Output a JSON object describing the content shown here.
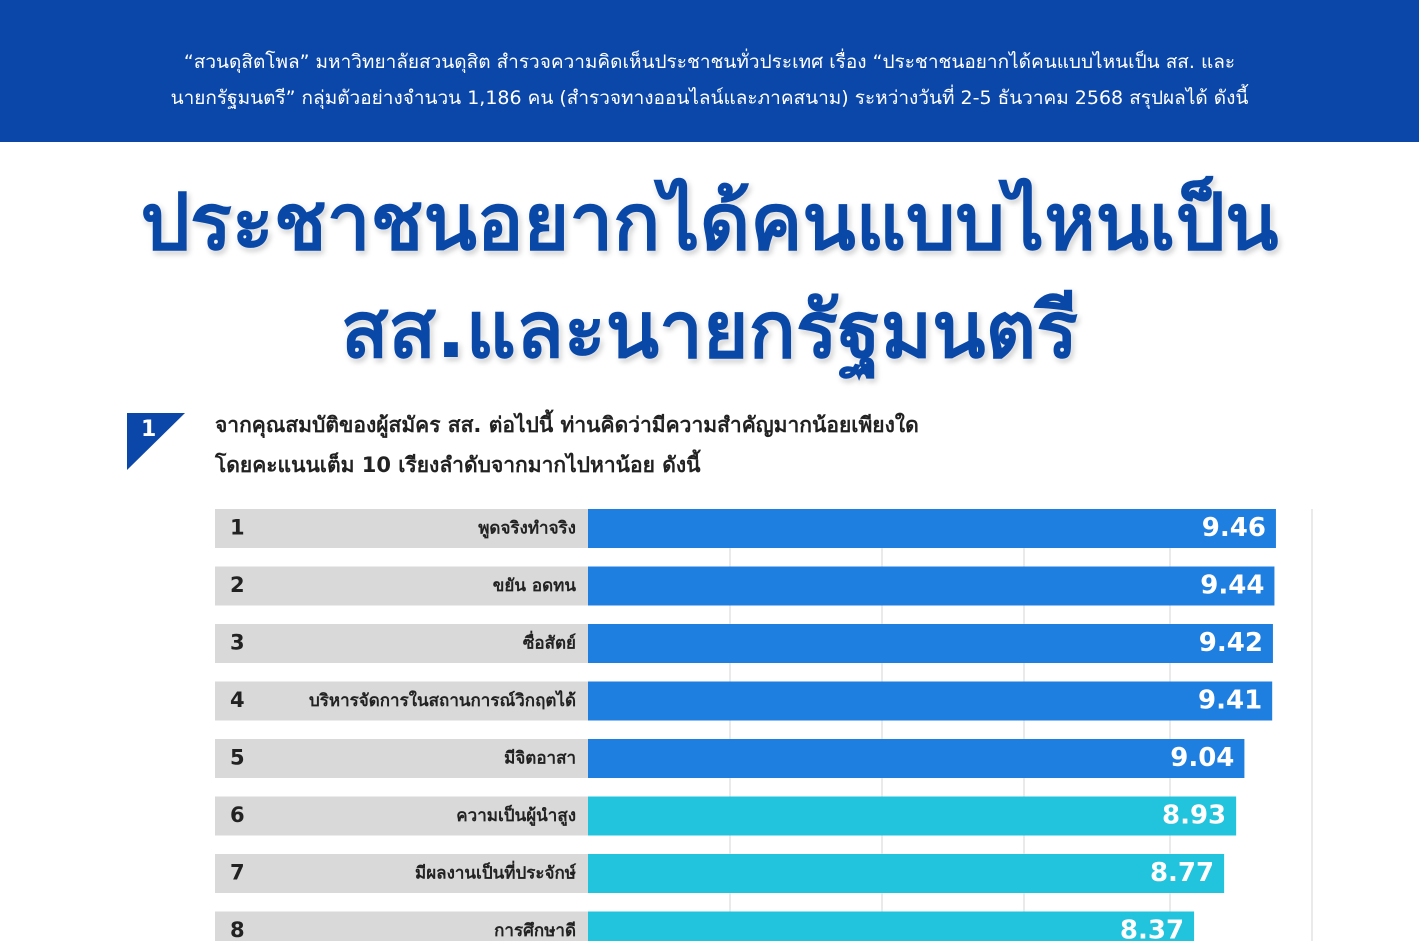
{
  "header": {
    "intro_lines": [
      "“สวนดุสิตโพล” มหาวิทยาลัยสวนดุสิต สำรวจความคิดเห็นประชาชนทั่วประเทศ เรื่อง “ประชาชนอยากได้คนแบบไหนเป็น สส. และ",
      "นายกรัฐมนตรี” กลุ่มตัวอย่างจำนวน 1,186 คน (สำรวจทางออนไลน์และภาคสนาม) ระหว่างวันที่ 2-5 ธันวาคม 2568 สรุปผลได้ ดังนี้"
    ]
  },
  "title_lines": [
    "ประชาชนอยากได้คนแบบไหนเป็น",
    "สส.และนายกรัฐมนตรี"
  ],
  "chart_data": {
    "type": "bar",
    "question_number": "1",
    "question_lines": [
      "จากคุณสมบัติของผู้สมัคร สส. ต่อไปนี้ ท่านคิดว่ามีความสำคัญมากน้อยเพียงใด",
      "โดยคะแนนเต็ม 10 เรียงลำดับจากมากไปหาน้อย ดังนี้"
    ],
    "ranks": [
      "1",
      "2",
      "3",
      "4",
      "5",
      "6",
      "7",
      "8"
    ],
    "categories": [
      "พูดจริงทำจริง",
      "ขยัน อดทน",
      "ซื่อสัตย์",
      "บริหารจัดการในสถานการณ์วิกฤตได้",
      "มีจิตอาสา",
      "ความเป็นผู้นำสูง",
      "มีผลงานเป็นที่ประจักษ์",
      "การศึกษาดี"
    ],
    "values": [
      9.46,
      9.44,
      9.42,
      9.41,
      9.04,
      8.93,
      8.77,
      8.37
    ],
    "colors": [
      "#1e7fe0",
      "#1e7fe0",
      "#1e7fe0",
      "#1e7fe0",
      "#1e7fe0",
      "#22c3dc",
      "#22c3dc",
      "#22c3dc"
    ],
    "xlim": [
      0.3,
      9.94
    ]
  }
}
